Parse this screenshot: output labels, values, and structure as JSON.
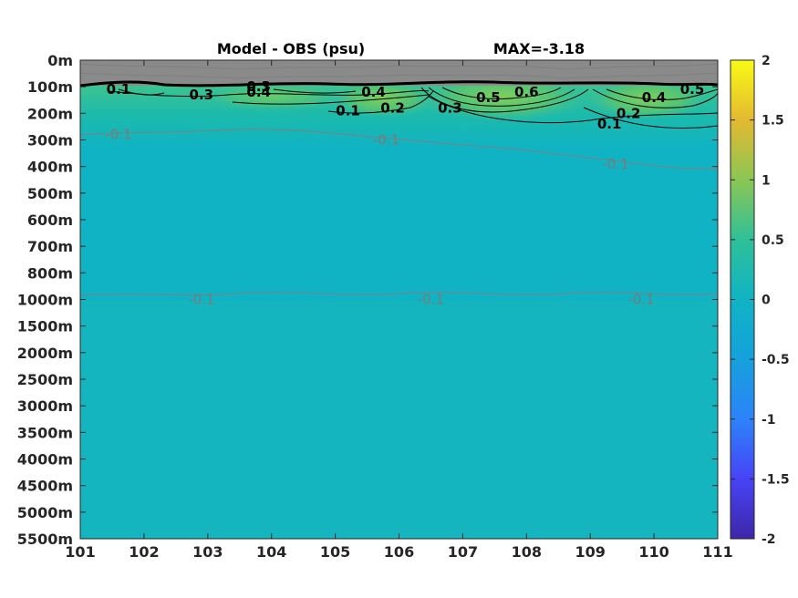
{
  "chart_data": {
    "type": "heatmap",
    "title": "Model - OBS (psu)",
    "subtitle": "MAX=-3.18",
    "x_ticks": [
      "101",
      "102",
      "103",
      "104",
      "105",
      "106",
      "107",
      "108",
      "109",
      "110",
      "111"
    ],
    "xlim": [
      101,
      111
    ],
    "y_ticks": [
      "0m",
      "100m",
      "200m",
      "300m",
      "400m",
      "500m",
      "600m",
      "700m",
      "800m",
      "1000m",
      "1500m",
      "2000m",
      "2500m",
      "3000m",
      "3500m",
      "4000m",
      "4500m",
      "5000m",
      "5500m"
    ],
    "colorbar": {
      "ticks": [
        "2",
        "1.5",
        "1",
        "0.5",
        "0",
        "-0.5",
        "-1",
        "-1.5",
        "-2"
      ],
      "range": [
        -2,
        2
      ],
      "colormap": "parula"
    },
    "background_value": -0.15,
    "surface_band": {
      "depth_range": [
        "0m",
        "100m"
      ],
      "color": "#8a8a8a"
    },
    "contour_labels": [
      {
        "text": "0.1",
        "x": 101.6,
        "depth_index": 1.1,
        "color": "black"
      },
      {
        "text": "0.3",
        "x": 102.9,
        "depth_index": 1.3,
        "color": "black"
      },
      {
        "text": "0.4",
        "x": 103.8,
        "depth_index": 1.2,
        "color": "black"
      },
      {
        "text": "0.3",
        "x": 103.8,
        "depth_index": 1.0,
        "color": "black"
      },
      {
        "text": "0.4",
        "x": 105.6,
        "depth_index": 1.2,
        "color": "black"
      },
      {
        "text": "0.2",
        "x": 105.9,
        "depth_index": 1.8,
        "color": "black"
      },
      {
        "text": "0.1",
        "x": 105.2,
        "depth_index": 1.9,
        "color": "black"
      },
      {
        "text": "0.3",
        "x": 106.8,
        "depth_index": 1.8,
        "color": "black"
      },
      {
        "text": "0.5",
        "x": 107.4,
        "depth_index": 1.4,
        "color": "black"
      },
      {
        "text": "0.6",
        "x": 108.0,
        "depth_index": 1.2,
        "color": "black"
      },
      {
        "text": "0.2",
        "x": 109.6,
        "depth_index": 2.0,
        "color": "black"
      },
      {
        "text": "0.1",
        "x": 109.3,
        "depth_index": 2.4,
        "color": "black"
      },
      {
        "text": "0.4",
        "x": 110.0,
        "depth_index": 1.4,
        "color": "black"
      },
      {
        "text": "0.5",
        "x": 110.6,
        "depth_index": 1.1,
        "color": "black"
      },
      {
        "text": "-0.1",
        "x": 101.6,
        "depth_index": 2.8,
        "color": "grey"
      },
      {
        "text": "-0.1",
        "x": 105.8,
        "depth_index": 3.0,
        "color": "grey"
      },
      {
        "text": "-0.1",
        "x": 109.4,
        "depth_index": 3.9,
        "color": "grey"
      },
      {
        "text": "-0.1",
        "x": 102.9,
        "depth_index": 9.0,
        "color": "grey"
      },
      {
        "text": "-0.1",
        "x": 106.5,
        "depth_index": 9.0,
        "color": "grey"
      },
      {
        "text": "-0.1",
        "x": 109.8,
        "depth_index": 9.0,
        "color": "grey"
      }
    ],
    "grid": false
  },
  "colors": {
    "background_field": "#10b3c4",
    "positive_anomaly": "#5fc86a",
    "surface_band": "#8a8a8a",
    "contour_black": "#000000",
    "contour_grey": "#7f7f7f"
  }
}
